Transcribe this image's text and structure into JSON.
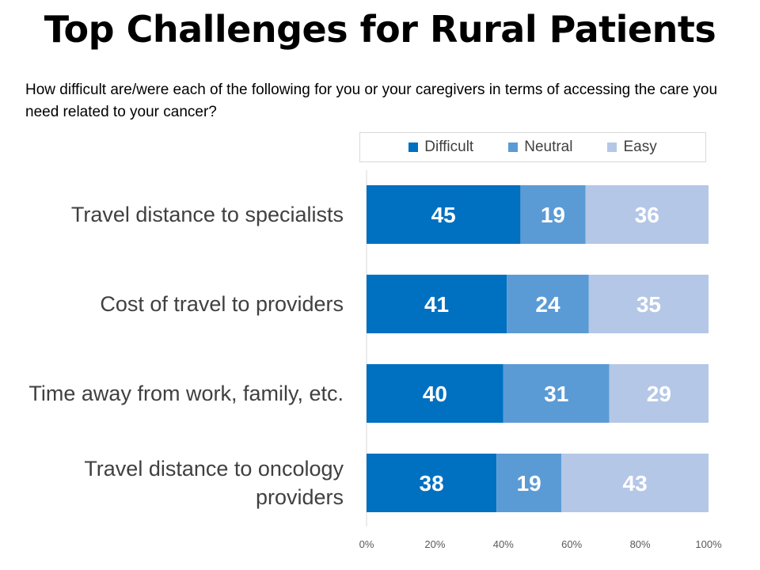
{
  "title": "Top Challenges for Rural Patients",
  "subtitle": "How difficult are/were each of the following for you or your caregivers in terms of accessing the care you need related to your cancer?",
  "legend": [
    {
      "label": "Difficult",
      "color": "#0070c0"
    },
    {
      "label": "Neutral",
      "color": "#5b9bd5"
    },
    {
      "label": "Easy",
      "color": "#b4c7e7"
    }
  ],
  "chart_data": {
    "type": "bar",
    "orientation": "horizontal",
    "stacked": true,
    "percent_stacked": true,
    "categories": [
      "Travel distance to specialists",
      "Cost of travel to providers",
      "Time away from work, family, etc.",
      "Travel distance to oncology providers"
    ],
    "series": [
      {
        "name": "Difficult",
        "values": [
          45,
          41,
          40,
          38
        ],
        "color": "#0070c0"
      },
      {
        "name": "Neutral",
        "values": [
          19,
          24,
          31,
          19
        ],
        "color": "#5b9bd5"
      },
      {
        "name": "Easy",
        "values": [
          36,
          35,
          29,
          43
        ],
        "color": "#b4c7e7"
      }
    ],
    "xlim": [
      0,
      100
    ],
    "xticks": [
      "0%",
      "20%",
      "40%",
      "60%",
      "80%",
      "100%"
    ],
    "legend_position": "top",
    "grid": false
  }
}
